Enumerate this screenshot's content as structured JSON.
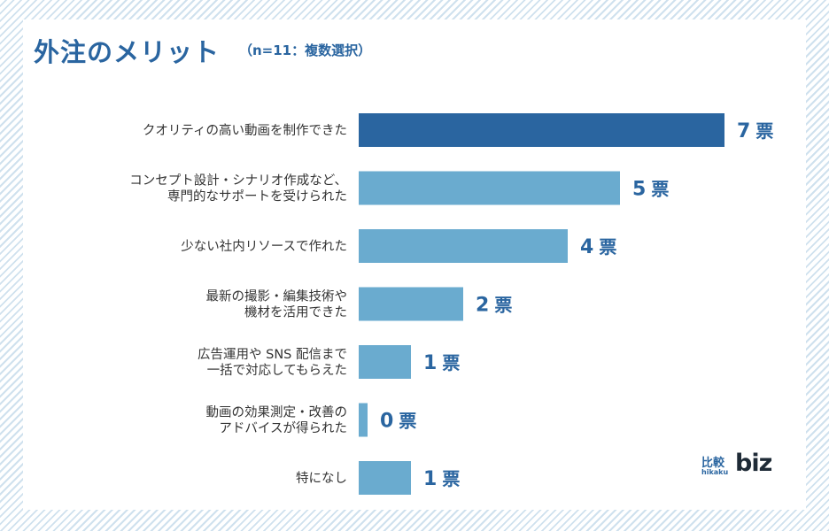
{
  "chart_data": {
    "type": "bar",
    "orientation": "horizontal",
    "title": "外注のメリット",
    "subtitle": "（n=11：複数選択）",
    "categories": [
      [
        "クオリティの高い動画を制作できた"
      ],
      [
        "コンセプト設計・シナリオ作成など、",
        "専門的なサポートを受けられた"
      ],
      [
        "少ない社内リソースで作れた"
      ],
      [
        "最新の撮影・編集技術や",
        "機材を活用できた"
      ],
      [
        "広告運用や SNS 配信まで",
        "一括で対応してもらえた"
      ],
      [
        "動画の効果測定・改善の",
        "アドバイスが得られた"
      ],
      [
        "特になし"
      ]
    ],
    "values": [
      7,
      5,
      4,
      2,
      1,
      0,
      1
    ],
    "unit": "票",
    "xlim": [
      0,
      7
    ],
    "grid": false,
    "colors": {
      "highlight": "#2a65a0",
      "bar": "#6aabcf",
      "text": "#333333",
      "accent": "#2a65a0"
    }
  },
  "logo": {
    "jp": "比較",
    "sub": "hikaku",
    "en": "biz"
  }
}
